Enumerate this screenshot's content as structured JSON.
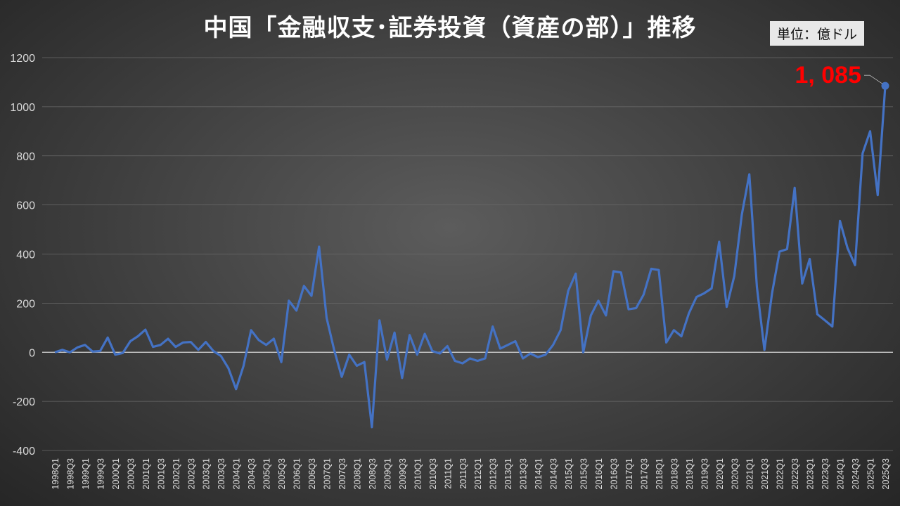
{
  "chart_data": {
    "type": "line",
    "title": "中国「金融収支･証券投資（資産の部）」推移",
    "unit_label": "単位：億ドル",
    "ylim": [
      -400,
      1200
    ],
    "yticks": [
      -400,
      -200,
      0,
      200,
      400,
      600,
      800,
      1000,
      1200
    ],
    "grid": true,
    "line_color": "#4472C4",
    "annotation": {
      "text": "1, 085",
      "color": "#FF0000",
      "x": "2025Q3"
    },
    "x": [
      "1998Q1",
      "1998Q2",
      "1998Q3",
      "1998Q4",
      "1999Q1",
      "1999Q2",
      "1999Q3",
      "1999Q4",
      "2000Q1",
      "2000Q2",
      "2000Q3",
      "2000Q4",
      "2001Q1",
      "2001Q2",
      "2001Q3",
      "2001Q4",
      "2002Q1",
      "2002Q2",
      "2002Q3",
      "2002Q4",
      "2003Q1",
      "2003Q2",
      "2003Q3",
      "2003Q4",
      "2004Q1",
      "2004Q2",
      "2004Q3",
      "2004Q4",
      "2005Q1",
      "2005Q2",
      "2005Q3",
      "2005Q4",
      "2006Q1",
      "2006Q2",
      "2006Q3",
      "2006Q4",
      "2007Q1",
      "2007Q2",
      "2007Q3",
      "2007Q4",
      "2008Q1",
      "2008Q2",
      "2008Q3",
      "2008Q4",
      "2009Q1",
      "2009Q2",
      "2009Q3",
      "2009Q4",
      "2010Q1",
      "2010Q2",
      "2010Q3",
      "2010Q4",
      "2011Q1",
      "2011Q2",
      "2011Q3",
      "2011Q4",
      "2012Q1",
      "2012Q2",
      "2012Q3",
      "2012Q4",
      "2013Q1",
      "2013Q2",
      "2013Q3",
      "2013Q4",
      "2014Q1",
      "2014Q2",
      "2014Q3",
      "2014Q4",
      "2015Q1",
      "2015Q2",
      "2015Q3",
      "2015Q4",
      "2016Q1",
      "2016Q2",
      "2016Q3",
      "2016Q4",
      "2017Q1",
      "2017Q2",
      "2017Q3",
      "2017Q4",
      "2018Q1",
      "2018Q2",
      "2018Q3",
      "2018Q4",
      "2019Q1",
      "2019Q2",
      "2019Q3",
      "2019Q4",
      "2020Q1",
      "2020Q2",
      "2020Q3",
      "2020Q4",
      "2021Q1",
      "2021Q2",
      "2021Q3",
      "2021Q4",
      "2022Q1",
      "2022Q2",
      "2022Q3",
      "2022Q4",
      "2023Q1",
      "2023Q2",
      "2023Q3",
      "2023Q4",
      "2024Q1",
      "2024Q2",
      "2024Q3",
      "2024Q4",
      "2025Q1",
      "2025Q2",
      "2025Q3"
    ],
    "values": [
      0,
      10,
      0,
      20,
      30,
      3,
      5,
      60,
      -10,
      -3,
      45,
      65,
      92,
      22,
      30,
      55,
      22,
      40,
      42,
      10,
      42,
      5,
      -15,
      -65,
      -150,
      -55,
      90,
      50,
      30,
      55,
      -40,
      210,
      170,
      270,
      230,
      430,
      140,
      10,
      -100,
      -10,
      -55,
      -40,
      -305,
      130,
      -30,
      80,
      -105,
      70,
      -10,
      75,
      5,
      -5,
      25,
      -35,
      -45,
      -25,
      -35,
      -25,
      105,
      15,
      30,
      45,
      -25,
      -5,
      -20,
      -10,
      30,
      90,
      250,
      320,
      0,
      150,
      210,
      150,
      330,
      325,
      175,
      180,
      235,
      340,
      335,
      40,
      90,
      65,
      160,
      225,
      240,
      260,
      450,
      185,
      310,
      560,
      725,
      265,
      10,
      240,
      410,
      420,
      670,
      280,
      380,
      155,
      130,
      105,
      535,
      425,
      355,
      810,
      900,
      640,
      1085
    ]
  }
}
